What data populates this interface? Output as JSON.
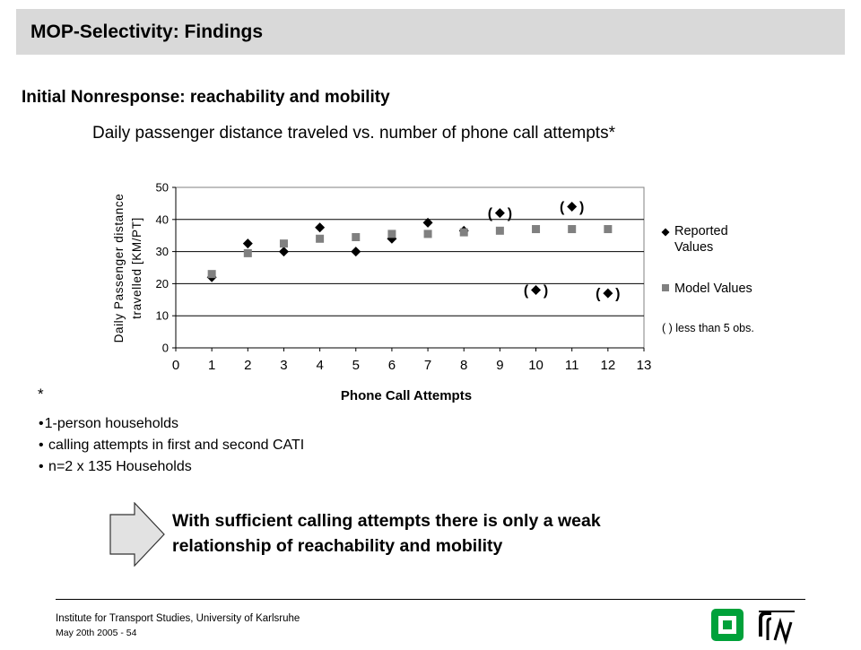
{
  "header": {
    "title": "MOP-Selectivity:  Findings"
  },
  "subtitle": "Initial Nonresponse: reachability and mobility",
  "chart_caption": "Daily passenger distance traveled vs. number of phone call attempts*",
  "chart_data": {
    "type": "scatter",
    "xlabel": "Phone Call Attempts",
    "ylabel_lines": [
      "Daily Passenger distance",
      "travelled [KM/PT]"
    ],
    "xlim": [
      0,
      13
    ],
    "ylim": [
      0,
      50
    ],
    "x_ticks": [
      0,
      1,
      2,
      3,
      4,
      5,
      6,
      7,
      8,
      9,
      10,
      11,
      12,
      13
    ],
    "y_ticks": [
      0,
      10,
      20,
      30,
      40,
      50
    ],
    "grid": "horizontal",
    "legend_position": "right",
    "series": [
      {
        "name": "Reported Values",
        "marker": "diamond",
        "color": "#000000",
        "points": [
          {
            "x": 1,
            "y": 22
          },
          {
            "x": 2,
            "y": 32.5
          },
          {
            "x": 3,
            "y": 30
          },
          {
            "x": 4,
            "y": 37.5
          },
          {
            "x": 5,
            "y": 30
          },
          {
            "x": 6,
            "y": 34
          },
          {
            "x": 7,
            "y": 39
          },
          {
            "x": 8,
            "y": 36.5
          }
        ]
      },
      {
        "name": "Reported Values (less than 5 obs.)",
        "marker": "diamond-parenthesized",
        "color": "#000000",
        "points": [
          {
            "x": 9,
            "y": 42
          },
          {
            "x": 10,
            "y": 18
          },
          {
            "x": 11,
            "y": 44
          },
          {
            "x": 12,
            "y": 17
          }
        ]
      },
      {
        "name": "Model Values",
        "marker": "square",
        "color": "#808080",
        "points": [
          {
            "x": 1,
            "y": 23
          },
          {
            "x": 2,
            "y": 29.5
          },
          {
            "x": 3,
            "y": 32.5
          },
          {
            "x": 4,
            "y": 34
          },
          {
            "x": 5,
            "y": 34.5
          },
          {
            "x": 6,
            "y": 35.5
          },
          {
            "x": 7,
            "y": 35.5
          },
          {
            "x": 8,
            "y": 36
          },
          {
            "x": 9,
            "y": 36.5
          },
          {
            "x": 10,
            "y": 37
          },
          {
            "x": 11,
            "y": 37
          },
          {
            "x": 12,
            "y": 37
          }
        ]
      }
    ],
    "legend": {
      "reported_lines": [
        "Reported",
        "Values"
      ],
      "model": "Model Values",
      "note": "(  ) less than 5 obs."
    }
  },
  "footnote": {
    "star": "*",
    "items": [
      "1-person households",
      " calling attempts in first and second CATI",
      " n=2 x  135 Households"
    ]
  },
  "conclusion": "With sufficient calling attempts there is only a weak relationship of reachability and mobility",
  "footer": {
    "institute": "Institute for Transport Studies, University of Karlsruhe",
    "date": "May 20th 2005 - 54"
  },
  "colors": {
    "title_bar": "#d9d9d9",
    "model_marker": "#808080",
    "logo_green": "#00a13a"
  }
}
